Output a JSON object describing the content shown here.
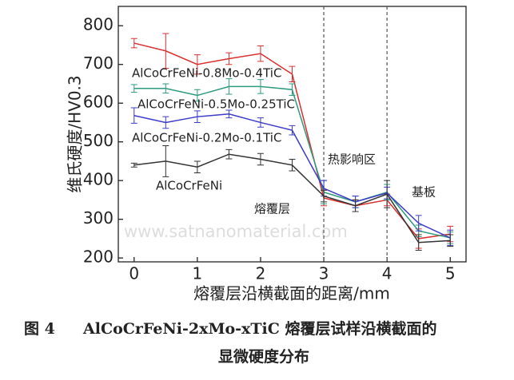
{
  "chart_data": {
    "type": "line",
    "x": [
      0,
      0.5,
      1,
      1.5,
      2,
      2.5,
      3,
      3.5,
      4,
      4.5,
      5
    ],
    "series": [
      {
        "name": "AlCoCrFeNi-0.8Mo-0.4TiC",
        "color": "#d93030",
        "values": [
          755,
          735,
          700,
          715,
          728,
          675,
          355,
          335,
          350,
          250,
          262
        ],
        "errors": [
          12,
          45,
          25,
          15,
          20,
          20,
          20,
          15,
          15,
          25,
          20
        ]
      },
      {
        "name": "AlCoCrFeNi-0.5Mo-0.25TiC",
        "color": "#2e9a7e",
        "values": [
          638,
          638,
          620,
          643,
          643,
          635,
          370,
          345,
          370,
          270,
          252
        ],
        "errors": [
          10,
          12,
          15,
          20,
          18,
          15,
          30,
          15,
          20,
          15,
          15
        ]
      },
      {
        "name": "AlCoCrFeNi-0.2Mo-0.1TiC",
        "color": "#3c3cc8",
        "values": [
          568,
          550,
          565,
          572,
          550,
          530,
          380,
          345,
          368,
          290,
          252
        ],
        "errors": [
          20,
          15,
          15,
          10,
          12,
          12,
          20,
          15,
          15,
          20,
          20
        ]
      },
      {
        "name": "AlCoCrFeNi",
        "color": "#333333",
        "values": [
          440,
          450,
          435,
          468,
          455,
          440,
          360,
          335,
          365,
          240,
          245
        ],
        "errors": [
          5,
          40,
          15,
          12,
          15,
          15,
          15,
          15,
          35,
          20,
          15
        ]
      }
    ],
    "xlim": [
      -0.25,
      5.25
    ],
    "ylim": [
      190,
      850
    ],
    "xticks": [
      0,
      1,
      2,
      3,
      4,
      5
    ],
    "yticks": [
      200,
      300,
      400,
      500,
      600,
      700,
      800
    ],
    "xlabel": "熔覆层沿横截面的距离/mm",
    "ylabel": "维氏硬度/HV0.3",
    "vlines": [
      3,
      4
    ],
    "annotations": [
      "熔覆层",
      "热影响区",
      "基板"
    ],
    "watermark": "www.satnanomaterial.com"
  },
  "figure_number": "图 4",
  "caption": [
    "AlCoCrFeNi-2xMo-xTiC 熔覆层试样沿横截面的",
    "显微硬度分布"
  ]
}
